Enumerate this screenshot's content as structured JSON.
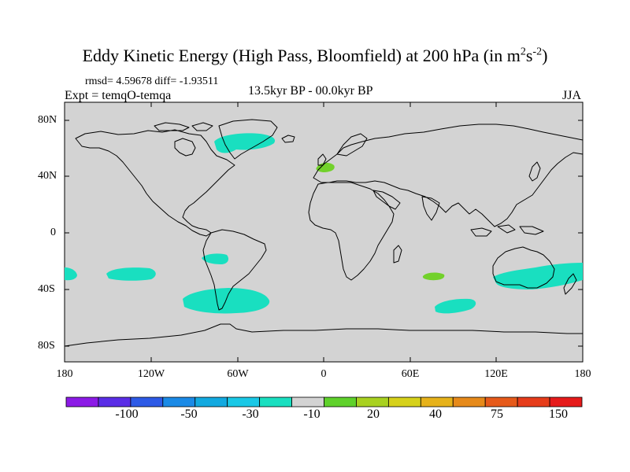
{
  "title": {
    "text": "Eddy Kinetic Energy (High Pass, Bloomfield) at 200 hPa (in m",
    "sup1": "2",
    "mid": "s",
    "sup2": "-2",
    "end": ")"
  },
  "stats_line": "rmsd= 4.59678 diff= -1.93511",
  "expt_line": "Expt = temqO-temqa",
  "period": "13.5kyr BP - 00.0kyr BP",
  "season": "JJA",
  "map": {
    "projection": "equirectangular",
    "background_color": "#d3d3d3",
    "coastline_color": "#000000",
    "lat_labels": [
      "80N",
      "40N",
      "0",
      "40S",
      "80S"
    ],
    "lon_labels": [
      "180",
      "120W",
      "60W",
      "0",
      "60E",
      "120E",
      "180"
    ],
    "anomalies": [
      {
        "region": "Greenland/North Atlantic",
        "color": "#19dfc0"
      },
      {
        "region": "Western Europe",
        "color": "#72d12b"
      },
      {
        "region": "South Pacific west",
        "color": "#19dfc0"
      },
      {
        "region": "South Pacific central",
        "color": "#19dfc0"
      },
      {
        "region": "South America Pacific coast",
        "color": "#19dfc0"
      },
      {
        "region": "Southern Ocean near Drake Passage",
        "color": "#19dfc0"
      },
      {
        "region": "South Indian Ocean",
        "color": "#72d12b"
      },
      {
        "region": "Southern Indian Ocean",
        "color": "#19dfc0"
      },
      {
        "region": "Australia and Tasman",
        "color": "#19dfc0"
      }
    ]
  },
  "colorbar": {
    "colors": [
      "#8c1ae6",
      "#5a2de6",
      "#2d5ae6",
      "#1a8ae6",
      "#12a9e0",
      "#19c8e6",
      "#19dfc0",
      "#d3d3d3",
      "#5fd12b",
      "#a8d120",
      "#d6d11a",
      "#e6b21a",
      "#e68a1a",
      "#e65a1a",
      "#e63c1a",
      "#e61a1a"
    ],
    "labels": [
      "-100",
      "-50",
      "-30",
      "-10",
      "20",
      "40",
      "75",
      "150"
    ]
  }
}
